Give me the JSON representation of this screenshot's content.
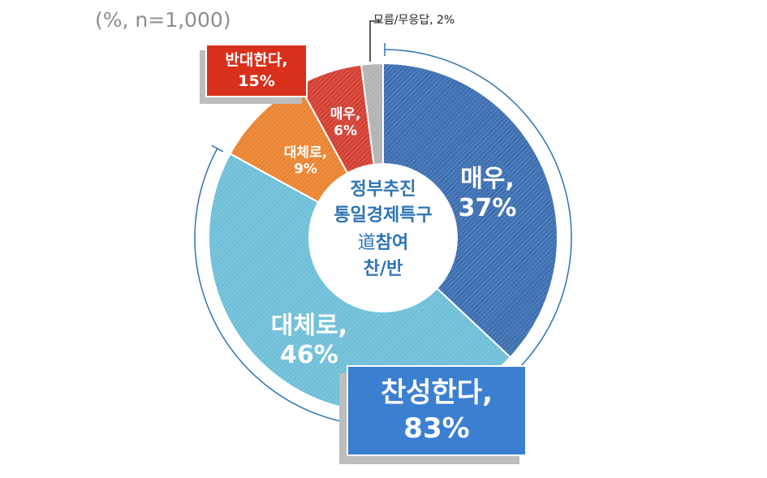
{
  "note": "(%, n=1,000)",
  "center_text": {
    "line1": "정부추진",
    "line2": "통일경제특구",
    "line3_hanja": "道",
    "line3_rest": "참여",
    "line4": "찬/반"
  },
  "callouts": {
    "oppose": {
      "line1": "반대한다,",
      "line2": "15%"
    },
    "support": {
      "line1": "찬성한다,",
      "line2": "83%"
    },
    "dont_know": "모름/무응답, 2%"
  },
  "chart_data": {
    "type": "pie",
    "donut": true,
    "title": "",
    "slices": [
      {
        "id": "strongly-agree",
        "label_line1": "매우,",
        "label_line2": "37%",
        "value": 37,
        "color": "#3d6fb1",
        "group": "찬성한다"
      },
      {
        "id": "somewhat-agree",
        "label_line1": "대체로,",
        "label_line2": "46%",
        "value": 46,
        "color": "#6fbfd8",
        "group": "찬성한다"
      },
      {
        "id": "somewhat-oppose",
        "label_line1": "대체로,",
        "label_line2": "9%",
        "value": 9,
        "color": "#ea8430",
        "group": "반대한다"
      },
      {
        "id": "strongly-oppose",
        "label_line1": "매우,",
        "label_line2": "6%",
        "value": 6,
        "color": "#d34033",
        "group": "반대한다"
      },
      {
        "id": "dont-know",
        "label_line1": "",
        "label_line2": "",
        "value": 2,
        "color": "#b3b3b3",
        "group": "모름/무응답"
      }
    ],
    "groups": [
      {
        "name": "찬성한다",
        "value": 83
      },
      {
        "name": "반대한다",
        "value": 15
      },
      {
        "name": "모름/무응답",
        "value": 2
      }
    ]
  }
}
